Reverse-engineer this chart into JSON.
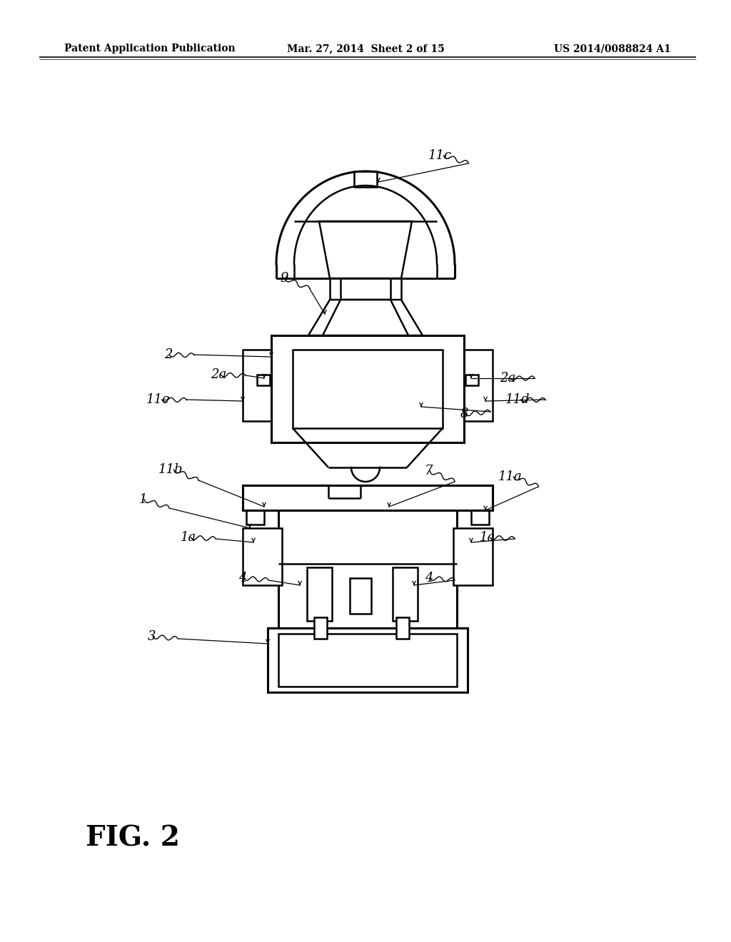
{
  "bg_color": "#ffffff",
  "header_left": "Patent Application Publication",
  "header_mid": "Mar. 27, 2014  Sheet 2 of 15",
  "header_right": "US 2014/0088824 A1",
  "figure_label": "FIG. 2",
  "line_color": "#000000",
  "lw": 1.8,
  "tlw": 2.2
}
